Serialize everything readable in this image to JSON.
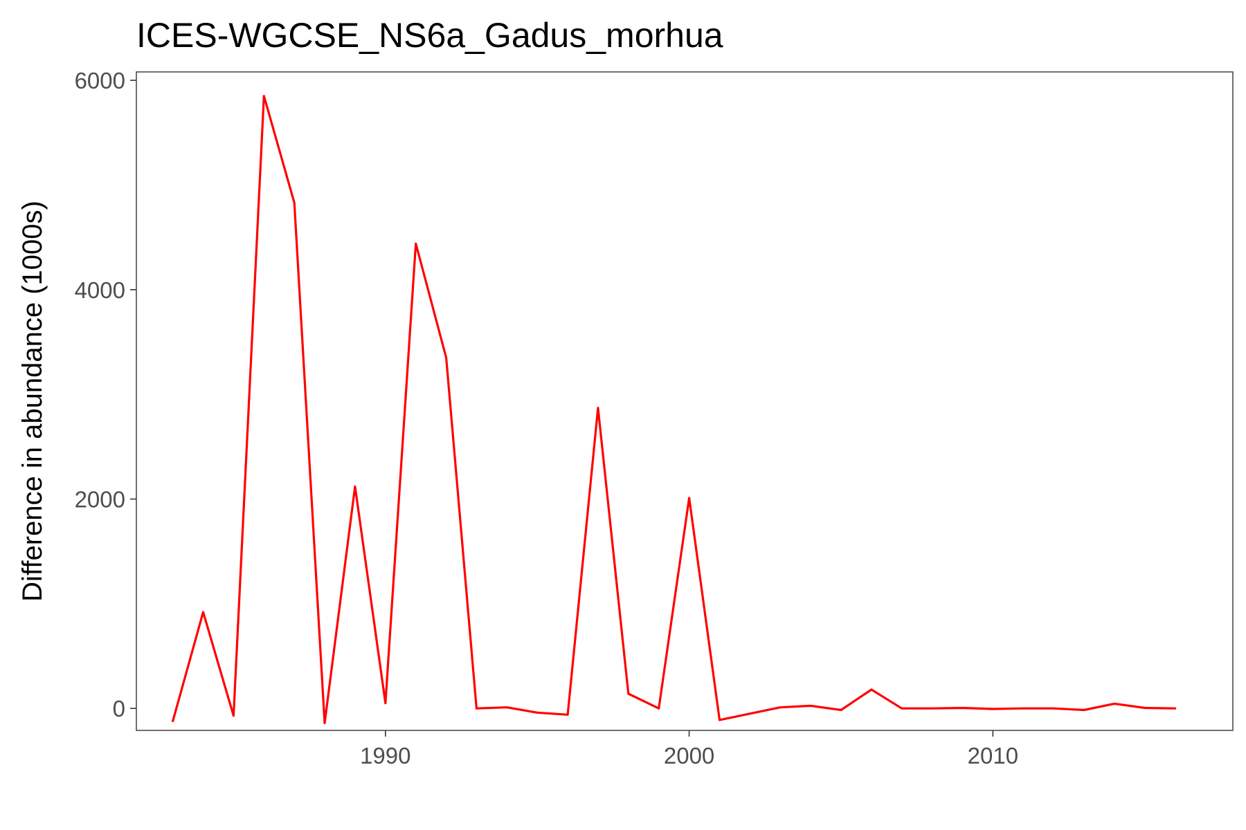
{
  "chart_data": {
    "type": "line",
    "title": "ICES-WGCSE_NS6a_Gadus_morhua",
    "xlabel": "",
    "ylabel": "Difference in abundance (1000s)",
    "xlim": [
      1981.8,
      2017.9
    ],
    "ylim": [
      -210,
      6080
    ],
    "x_ticks": [
      1990,
      2000,
      2010
    ],
    "y_ticks": [
      0,
      2000,
      4000,
      6000
    ],
    "grid": false,
    "legend": "none",
    "series": [
      {
        "color": "#ff0000",
        "x": [
          1983,
          1984,
          1985,
          1986,
          1987,
          1988,
          1989,
          1990,
          1991,
          1992,
          1993,
          1994,
          1995,
          1996,
          1997,
          1998,
          1999,
          2000,
          2001,
          2002,
          2003,
          2004,
          2005,
          2006,
          2007,
          2008,
          2009,
          2010,
          2011,
          2012,
          2013,
          2014,
          2015,
          2016
        ],
        "values": [
          -120,
          920,
          -70,
          5850,
          4830,
          -140,
          2120,
          50,
          4440,
          3350,
          0,
          10,
          -40,
          -60,
          2870,
          140,
          0,
          2010,
          -110,
          -50,
          10,
          25,
          -15,
          180,
          0,
          0,
          5,
          -5,
          0,
          0,
          -15,
          45,
          5,
          0
        ]
      }
    ]
  }
}
